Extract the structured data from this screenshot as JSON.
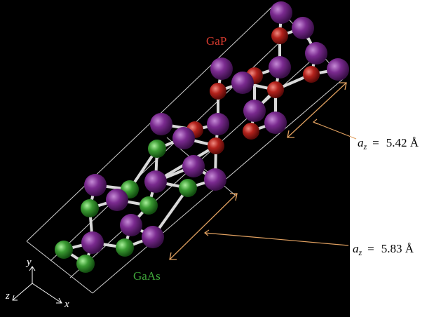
{
  "labels": {
    "gap": "GaP",
    "gaas": "GaAs",
    "axis_x": "x",
    "axis_y": "y",
    "axis_z": "z"
  },
  "annotations": [
    {
      "symbol": "a",
      "subscript": "z",
      "equals": "=",
      "value": "5.42 Å"
    },
    {
      "symbol": "a",
      "subscript": "z",
      "equals": "=",
      "value": "5.83 Å"
    }
  ],
  "colors": {
    "background": "#000000",
    "frame_lines": "#cfcfcf",
    "bonds": "#d9d9d9",
    "ga_atom": "#7a2a8f",
    "p_atom": "#b3221c",
    "as_atom": "#3a9a32",
    "gap_label": "#d43a2e",
    "gaas_label": "#3fa53a",
    "arrows": "#e0a060",
    "axis": "#ffffff",
    "annotation_text": "#000000"
  },
  "legend": {
    "ga_atom": "purple-sphere",
    "p_atom": "red-sphere",
    "as_atom": "green-sphere"
  }
}
